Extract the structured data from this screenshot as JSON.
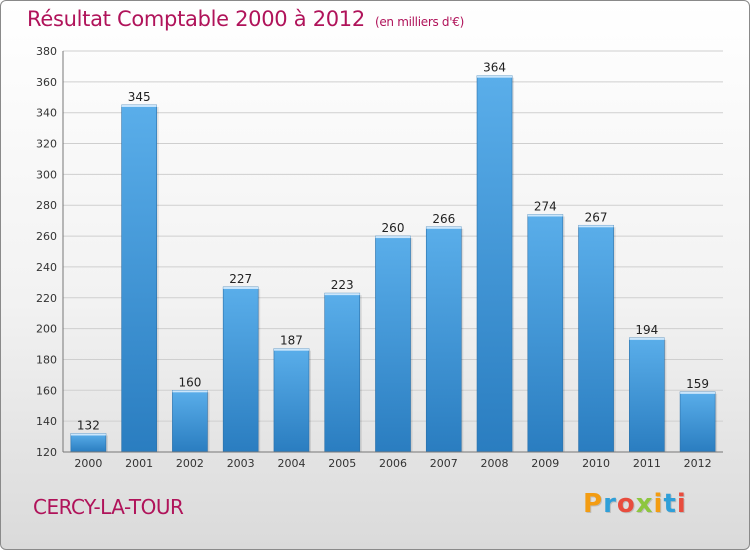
{
  "header": {
    "title": "Résultat Comptable 2000 à 2012",
    "unit": "(en milliers d'€)"
  },
  "footer": {
    "commune": "CERCY-LA-TOUR",
    "logo_text": "Proxiti"
  },
  "colors": {
    "title": "#b0135a",
    "bar_top": "#5aaeea",
    "bar_bottom": "#2a7dc0",
    "logo": [
      "#f39c12",
      "#2f9fd8",
      "#e84c3d",
      "#8dc63f",
      "#f39c12",
      "#2f9fd8",
      "#e84c3d"
    ]
  },
  "chart_data": {
    "type": "bar",
    "title": "Résultat Comptable 2000 à 2012",
    "subtitle": "(en milliers d'€)",
    "xlabel": "",
    "ylabel": "",
    "categories": [
      "2000",
      "2001",
      "2002",
      "2003",
      "2004",
      "2005",
      "2006",
      "2007",
      "2008",
      "2009",
      "2010",
      "2011",
      "2012"
    ],
    "values": [
      132,
      345,
      160,
      227,
      187,
      223,
      260,
      266,
      364,
      274,
      267,
      194,
      159
    ],
    "ylim": [
      120,
      380
    ],
    "yticks": [
      120,
      140,
      160,
      180,
      200,
      220,
      240,
      260,
      280,
      300,
      320,
      340,
      360,
      380
    ],
    "grid": true,
    "data_labels": true
  }
}
